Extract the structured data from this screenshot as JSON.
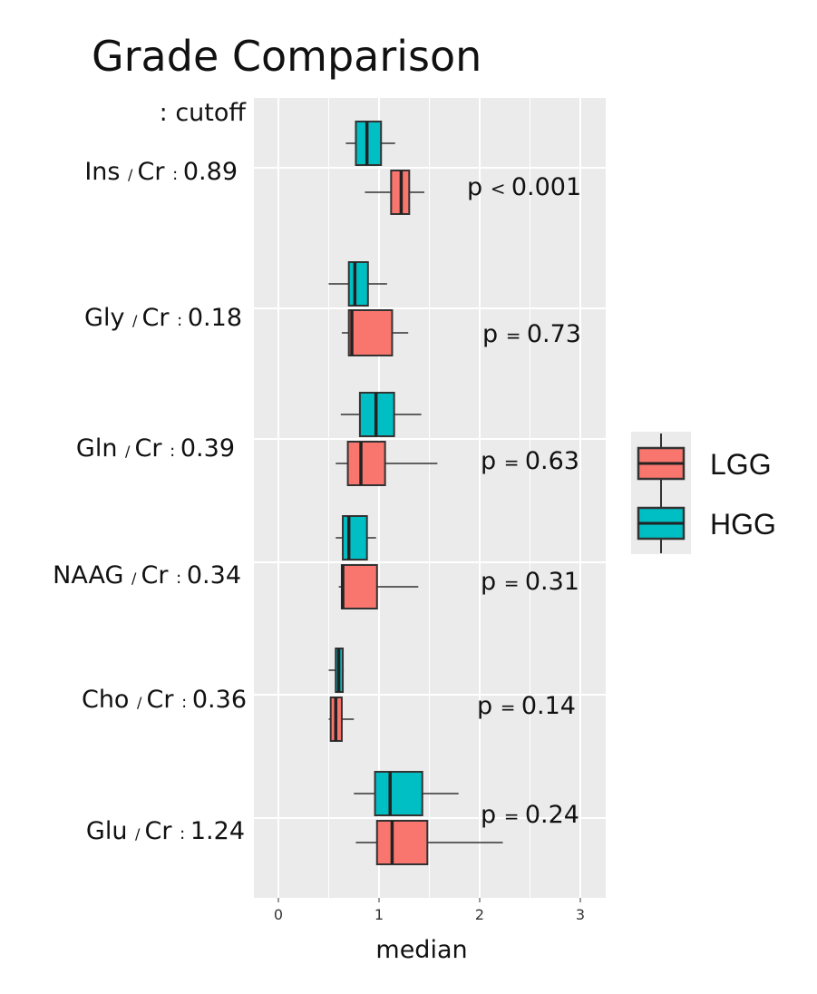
{
  "chart_data": {
    "type": "boxplot",
    "orientation": "horizontal",
    "title": "Grade Comparison",
    "xlabel": "median",
    "xlim": [
      -0.25,
      3.3
    ],
    "xticks": [
      0,
      1,
      2,
      3
    ],
    "cutoff_header": ": cutoff",
    "legend": [
      {
        "key": "LGG",
        "label": "LGG",
        "color": "#F8766D"
      },
      {
        "key": "HGG",
        "label": "HGG",
        "color": "#00BFC4"
      }
    ],
    "rows": [
      {
        "metabolite": "Ins",
        "sep": "/",
        "ratio": "Cr",
        "colon": ":",
        "cutoff": "0.89",
        "p_label": "p",
        "p_op": "<",
        "p_value": "0.001",
        "HGG": {
          "min": 0.67,
          "q1": 0.77,
          "median": 0.88,
          "q3": 1.02,
          "max": 1.16
        },
        "LGG": {
          "min": 0.86,
          "q1": 1.12,
          "median": 1.22,
          "q3": 1.3,
          "max": 1.45
        }
      },
      {
        "metabolite": "Gly",
        "sep": "/",
        "ratio": "Cr",
        "colon": ":",
        "cutoff": "0.18",
        "p_label": "p",
        "p_op": "=",
        "p_value": "0.73",
        "HGG": {
          "min": 0.5,
          "q1": 0.7,
          "median": 0.76,
          "q3": 0.89,
          "max": 1.08
        },
        "LGG": {
          "min": 0.63,
          "q1": 0.7,
          "median": 0.73,
          "q3": 1.13,
          "max": 1.29
        }
      },
      {
        "metabolite": "Gln",
        "sep": "/",
        "ratio": "Cr",
        "colon": ":",
        "cutoff": "0.39",
        "p_label": "p",
        "p_op": "=",
        "p_value": "0.63",
        "HGG": {
          "min": 0.62,
          "q1": 0.81,
          "median": 0.97,
          "q3": 1.15,
          "max": 1.42
        },
        "LGG": {
          "min": 0.57,
          "q1": 0.69,
          "median": 0.82,
          "q3": 1.06,
          "max": 1.58
        }
      },
      {
        "metabolite": "NAAG",
        "sep": "/",
        "ratio": "Cr",
        "colon": ":",
        "cutoff": "0.34",
        "p_label": "p",
        "p_op": "=",
        "p_value": "0.31",
        "HGG": {
          "min": 0.57,
          "q1": 0.64,
          "median": 0.7,
          "q3": 0.88,
          "max": 0.97
        },
        "LGG": {
          "min": 0.6,
          "q1": 0.63,
          "median": 0.64,
          "q3": 0.98,
          "max": 1.39
        }
      },
      {
        "metabolite": "Cho",
        "sep": "/",
        "ratio": "Cr",
        "colon": ":",
        "cutoff": "0.36",
        "p_label": "p",
        "p_op": "=",
        "p_value": "0.14",
        "HGG": {
          "min": 0.5,
          "q1": 0.57,
          "median": 0.6,
          "q3": 0.64,
          "max": 0.65
        },
        "LGG": {
          "min": 0.5,
          "q1": 0.52,
          "median": 0.57,
          "q3": 0.63,
          "max": 0.75
        }
      },
      {
        "metabolite": "Glu",
        "sep": "/",
        "ratio": "Cr",
        "colon": ":",
        "cutoff": "1.24",
        "p_label": "p",
        "p_op": "=",
        "p_value": "0.24",
        "HGG": {
          "min": 0.75,
          "q1": 0.96,
          "median": 1.11,
          "q3": 1.43,
          "max": 1.79
        },
        "LGG": {
          "min": 0.77,
          "q1": 0.98,
          "median": 1.13,
          "q3": 1.48,
          "max": 2.23
        }
      }
    ]
  }
}
